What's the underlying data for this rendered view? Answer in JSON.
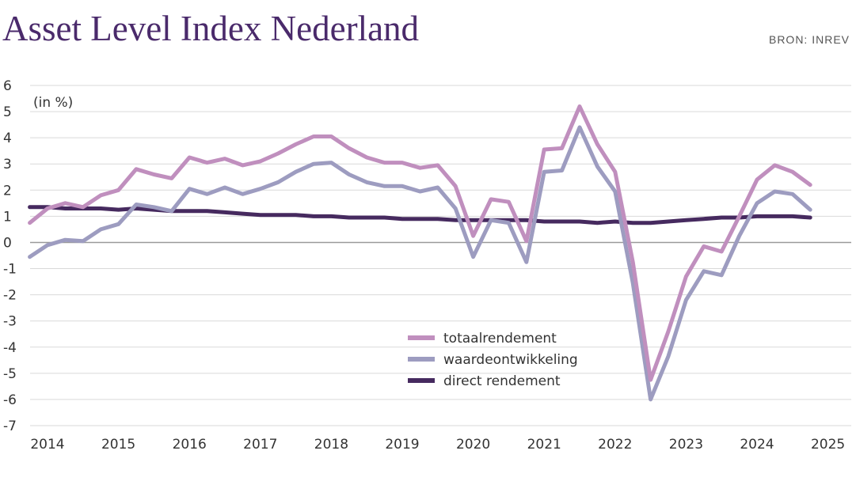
{
  "title": "Asset Level Index Nederland",
  "source": "BRON: INREV",
  "unit_label": "(in %)",
  "colors": {
    "totaalrendement": "#c08fbe",
    "waardeontwikkeling": "#9d9cc0",
    "direct_rendement": "#462a5f",
    "title": "#4a2a6b",
    "grid": "#d9d9d9",
    "zero_line": "#999999"
  },
  "chart_data": {
    "type": "line",
    "ylim": [
      -7,
      6
    ],
    "yticks": [
      6,
      5,
      4,
      3,
      2,
      1,
      0,
      -1,
      -2,
      -3,
      -4,
      -5,
      -6,
      -7
    ],
    "ytick_labels": [
      "6",
      "5",
      "4",
      "3",
      "2",
      "1",
      "0",
      "-1",
      "-2",
      "-3",
      "-4",
      "-5",
      "-6",
      "-7"
    ],
    "xlim": [
      2014,
      2025
    ],
    "xticks": [
      2014,
      2015,
      2016,
      2017,
      2018,
      2019,
      2020,
      2021,
      2022,
      2023,
      2024,
      2025
    ],
    "xtick_labels": [
      "2014",
      "2015",
      "2016",
      "2017",
      "2018",
      "2019",
      "2020",
      "2021",
      "2022",
      "2023",
      "2024",
      "2025"
    ],
    "grid": true,
    "legend_position": "bottom-center",
    "x": [
      2013.75,
      2014.0,
      2014.25,
      2014.5,
      2014.75,
      2015.0,
      2015.25,
      2015.5,
      2015.75,
      2016.0,
      2016.25,
      2016.5,
      2016.75,
      2017.0,
      2017.25,
      2017.5,
      2017.75,
      2018.0,
      2018.25,
      2018.5,
      2018.75,
      2019.0,
      2019.25,
      2019.5,
      2019.75,
      2020.0,
      2020.25,
      2020.5,
      2020.75,
      2021.0,
      2021.25,
      2021.5,
      2021.75,
      2022.0,
      2022.25,
      2022.5,
      2022.75,
      2023.0,
      2023.25,
      2023.5,
      2023.75,
      2024.0,
      2024.25,
      2024.5,
      2024.75
    ],
    "series": [
      {
        "name": "totaalrendement",
        "values": [
          0.75,
          1.3,
          1.5,
          1.35,
          1.8,
          2.0,
          2.8,
          2.6,
          2.45,
          3.25,
          3.05,
          3.2,
          2.95,
          3.1,
          3.4,
          3.75,
          4.05,
          4.05,
          3.6,
          3.25,
          3.05,
          3.05,
          2.85,
          2.95,
          2.15,
          0.25,
          1.65,
          1.55,
          0.05,
          3.55,
          3.6,
          5.2,
          3.75,
          2.7,
          -0.75,
          -5.25,
          -3.4,
          -1.3,
          -0.15,
          -0.35,
          1.0,
          2.4,
          2.95,
          2.7,
          2.2
        ]
      },
      {
        "name": "waardeontwikkeling",
        "values": [
          -0.55,
          -0.1,
          0.1,
          0.05,
          0.5,
          0.7,
          1.45,
          1.35,
          1.2,
          2.05,
          1.85,
          2.1,
          1.85,
          2.05,
          2.3,
          2.7,
          3.0,
          3.05,
          2.6,
          2.3,
          2.15,
          2.15,
          1.95,
          2.1,
          1.3,
          -0.55,
          0.85,
          0.75,
          -0.75,
          2.7,
          2.75,
          4.4,
          2.9,
          1.95,
          -1.55,
          -6.0,
          -4.35,
          -2.2,
          -1.1,
          -1.25,
          0.25,
          1.5,
          1.95,
          1.85,
          1.25
        ]
      },
      {
        "name": "direct rendement",
        "values": [
          1.35,
          1.35,
          1.3,
          1.3,
          1.3,
          1.25,
          1.3,
          1.25,
          1.2,
          1.2,
          1.2,
          1.15,
          1.1,
          1.05,
          1.05,
          1.05,
          1.0,
          1.0,
          0.95,
          0.95,
          0.95,
          0.9,
          0.9,
          0.9,
          0.85,
          0.85,
          0.85,
          0.85,
          0.85,
          0.8,
          0.8,
          0.8,
          0.75,
          0.8,
          0.75,
          0.75,
          0.8,
          0.85,
          0.9,
          0.95,
          0.95,
          1.0,
          1.0,
          1.0,
          0.95
        ]
      }
    ]
  }
}
